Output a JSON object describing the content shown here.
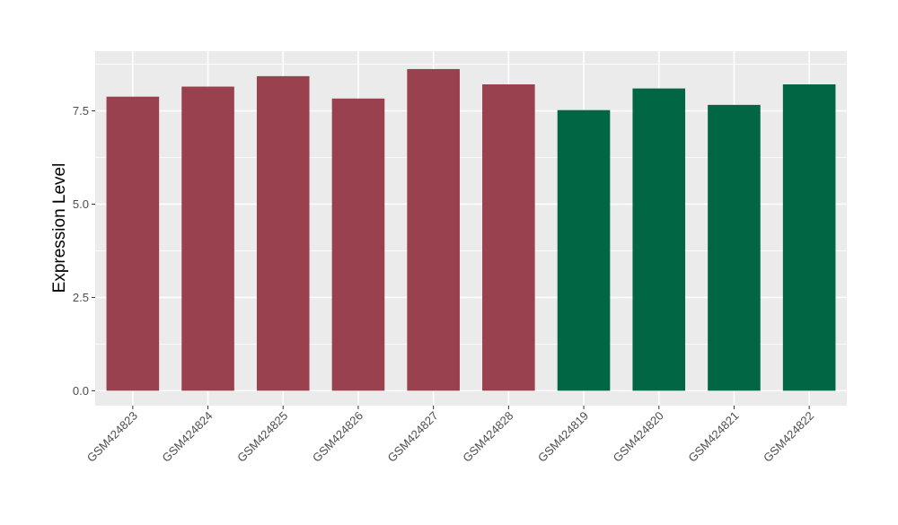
{
  "chart_data": {
    "type": "bar",
    "title": "",
    "xlabel": "",
    "ylabel": "Expression Level",
    "categories": [
      "GSM424823",
      "GSM424824",
      "GSM424825",
      "GSM424826",
      "GSM424827",
      "GSM424828",
      "GSM424819",
      "GSM424820",
      "GSM424821",
      "GSM424822"
    ],
    "values": [
      7.88,
      8.15,
      8.43,
      7.83,
      8.62,
      8.21,
      7.52,
      8.1,
      7.66,
      8.21
    ],
    "bar_colors": [
      "#99414f",
      "#99414f",
      "#99414f",
      "#99414f",
      "#99414f",
      "#99414f",
      "#006644",
      "#006644",
      "#006644",
      "#006644"
    ],
    "ylim": [
      -0.4,
      9.1
    ],
    "yticks": [
      0.0,
      2.5,
      5.0,
      7.5
    ],
    "ytick_labels": [
      "0.0",
      "2.5",
      "5.0",
      "7.5"
    ],
    "grid": true,
    "panel_background": "#ebebeb",
    "grid_color": "#ffffff",
    "tick_color": "#333333",
    "legend": "none"
  }
}
